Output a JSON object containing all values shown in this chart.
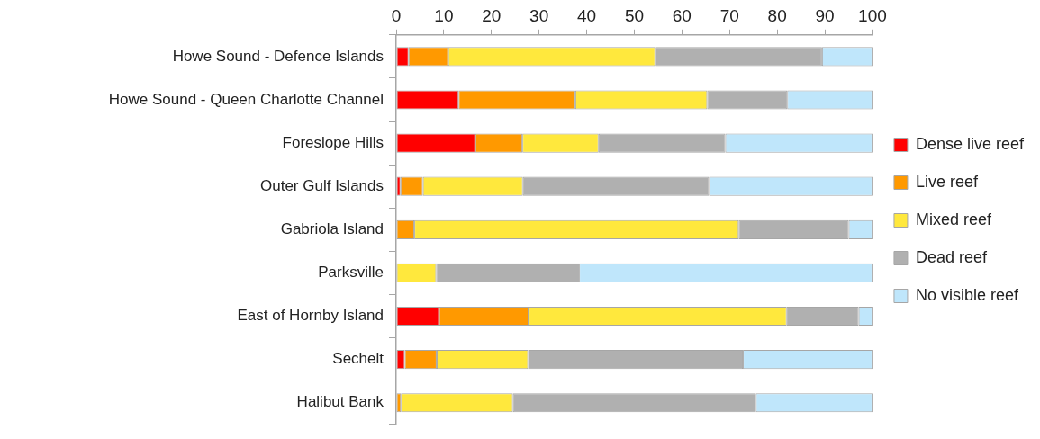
{
  "chart_data": {
    "type": "bar",
    "orientation": "horizontal",
    "stacked": true,
    "categories": [
      "Howe Sound - Defence Islands",
      "Howe Sound - Queen Charlotte Channel",
      "Foreslope Hills",
      "Outer Gulf Islands",
      "Gabriola Island",
      "Parksville",
      "East of Hornby Island",
      "Sechelt",
      "Halibut Bank"
    ],
    "series": [
      {
        "name": "Dense live reef",
        "color": "#ff0000",
        "values": [
          2.6,
          13.1,
          16.6,
          0.9,
          0,
          0,
          9.0,
          1.8,
          0
        ]
      },
      {
        "name": "Live reef",
        "color": "#ff9900",
        "values": [
          8.3,
          24.5,
          9.9,
          4.7,
          3.8,
          0,
          18.8,
          6.7,
          1.0
        ]
      },
      {
        "name": "Mixed reef",
        "color": "#ffe83d",
        "values": [
          43.5,
          27.7,
          16.0,
          21.0,
          68.1,
          8.4,
          54.2,
          19.2,
          23.5
        ]
      },
      {
        "name": "Dead reef",
        "color": "#b0b0b0",
        "values": [
          35.0,
          16.8,
          26.6,
          39.1,
          23.1,
          30.0,
          15.1,
          45.1,
          51.0
        ]
      },
      {
        "name": "No visible reef",
        "color": "#bfe6fb",
        "values": [
          10.6,
          17.9,
          30.9,
          34.3,
          5.0,
          61.6,
          2.9,
          27.2,
          24.5
        ]
      }
    ],
    "xlim": [
      0,
      100
    ],
    "xticks": [
      0,
      10,
      20,
      30,
      40,
      50,
      60,
      70,
      80,
      90,
      100
    ],
    "grid": false,
    "legend": "right"
  }
}
